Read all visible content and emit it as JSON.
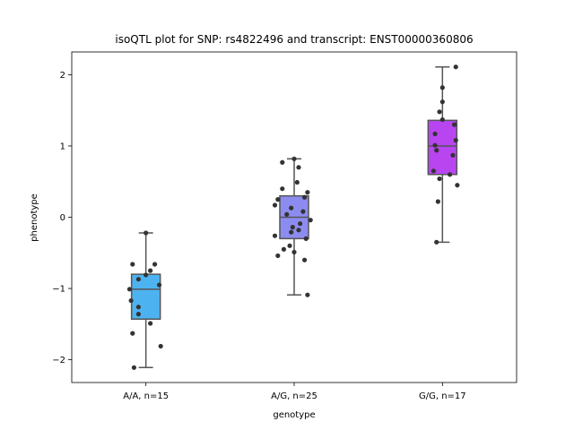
{
  "chart_data": {
    "type": "box",
    "title": "isoQTL plot for SNP: rs4822496 and transcript: ENST00000360806",
    "xlabel": "genotype",
    "ylabel": "phenotype",
    "ylim": [
      -2.32,
      2.32
    ],
    "yticks": [
      -2,
      -1,
      0,
      1,
      2
    ],
    "ytick_labels": [
      "−2",
      "−1",
      "0",
      "1",
      "2"
    ],
    "grid": false,
    "categories": [
      "A/A, n=15",
      "A/G, n=25",
      "G/G, n=17"
    ],
    "box_colors": [
      "#4db3f0",
      "#8c8cf0",
      "#b845f0"
    ],
    "point_color": "#333333",
    "edge_color": "#555555",
    "boxes": [
      {
        "category": "A/A, n=15",
        "whisker_low": -2.11,
        "q1": -1.43,
        "median": -1.01,
        "q3": -0.8,
        "whisker_high": -0.22
      },
      {
        "category": "A/G, n=25",
        "whisker_low": -1.09,
        "q1": -0.3,
        "median": 0.0,
        "q3": 0.3,
        "whisker_high": 0.82
      },
      {
        "category": "G/G, n=17",
        "whisker_low": -0.35,
        "q1": 0.6,
        "median": 1.0,
        "q3": 1.36,
        "whisker_high": 2.11
      }
    ],
    "points": [
      [
        {
          "jitter": 0.0,
          "y": -0.22
        },
        {
          "jitter": -0.09,
          "y": -0.66
        },
        {
          "jitter": 0.06,
          "y": -0.66
        },
        {
          "jitter": 0.03,
          "y": -0.75
        },
        {
          "jitter": 0.0,
          "y": -0.81
        },
        {
          "jitter": -0.05,
          "y": -0.87
        },
        {
          "jitter": 0.09,
          "y": -0.95
        },
        {
          "jitter": -0.11,
          "y": -1.01
        },
        {
          "jitter": -0.1,
          "y": -1.17
        },
        {
          "jitter": -0.05,
          "y": -1.26
        },
        {
          "jitter": -0.05,
          "y": -1.36
        },
        {
          "jitter": 0.03,
          "y": -1.49
        },
        {
          "jitter": -0.09,
          "y": -1.63
        },
        {
          "jitter": 0.1,
          "y": -1.81
        },
        {
          "jitter": -0.08,
          "y": -2.11
        }
      ],
      [
        {
          "jitter": 0.0,
          "y": 0.82
        },
        {
          "jitter": -0.08,
          "y": 0.77
        },
        {
          "jitter": 0.03,
          "y": 0.7
        },
        {
          "jitter": 0.02,
          "y": 0.49
        },
        {
          "jitter": -0.08,
          "y": 0.4
        },
        {
          "jitter": 0.09,
          "y": 0.35
        },
        {
          "jitter": 0.07,
          "y": 0.28
        },
        {
          "jitter": -0.11,
          "y": 0.25
        },
        {
          "jitter": -0.13,
          "y": 0.17
        },
        {
          "jitter": -0.02,
          "y": 0.13
        },
        {
          "jitter": 0.06,
          "y": 0.08
        },
        {
          "jitter": -0.05,
          "y": 0.04
        },
        {
          "jitter": 0.11,
          "y": -0.04
        },
        {
          "jitter": 0.04,
          "y": -0.09
        },
        {
          "jitter": -0.01,
          "y": -0.14
        },
        {
          "jitter": 0.03,
          "y": -0.18
        },
        {
          "jitter": -0.02,
          "y": -0.21
        },
        {
          "jitter": -0.13,
          "y": -0.26
        },
        {
          "jitter": 0.08,
          "y": -0.3
        },
        {
          "jitter": -0.03,
          "y": -0.4
        },
        {
          "jitter": -0.07,
          "y": -0.45
        },
        {
          "jitter": 0.0,
          "y": -0.49
        },
        {
          "jitter": -0.11,
          "y": -0.54
        },
        {
          "jitter": 0.07,
          "y": -0.6
        },
        {
          "jitter": 0.09,
          "y": -1.09
        }
      ],
      [
        {
          "jitter": 0.09,
          "y": 2.11
        },
        {
          "jitter": 0.0,
          "y": 1.82
        },
        {
          "jitter": 0.0,
          "y": 1.62
        },
        {
          "jitter": -0.02,
          "y": 1.48
        },
        {
          "jitter": 0.0,
          "y": 1.37
        },
        {
          "jitter": 0.08,
          "y": 1.3
        },
        {
          "jitter": -0.05,
          "y": 1.17
        },
        {
          "jitter": 0.09,
          "y": 1.08
        },
        {
          "jitter": -0.05,
          "y": 1.01
        },
        {
          "jitter": -0.04,
          "y": 0.94
        },
        {
          "jitter": 0.07,
          "y": 0.87
        },
        {
          "jitter": -0.06,
          "y": 0.65
        },
        {
          "jitter": 0.05,
          "y": 0.6
        },
        {
          "jitter": -0.02,
          "y": 0.54
        },
        {
          "jitter": 0.1,
          "y": 0.45
        },
        {
          "jitter": -0.03,
          "y": 0.22
        },
        {
          "jitter": -0.04,
          "y": -0.35
        }
      ]
    ]
  }
}
